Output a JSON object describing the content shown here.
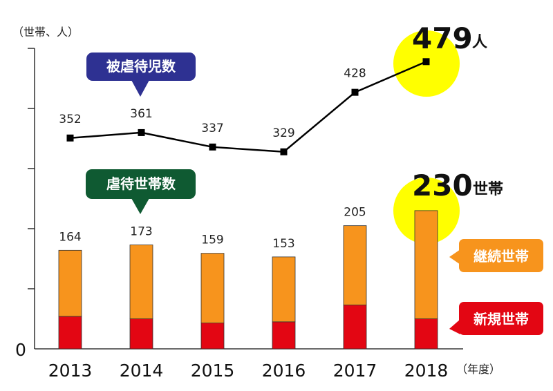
{
  "chart_data": {
    "type": "bar+line",
    "categories": [
      "2013",
      "2014",
      "2015",
      "2016",
      "2017",
      "2018"
    ],
    "line_series": {
      "name": "被虐待児数",
      "values": [
        352,
        361,
        337,
        329,
        428,
        479
      ],
      "color": "#000000"
    },
    "bar_series": [
      {
        "name": "新規世帯",
        "values": [
          54,
          50,
          43,
          45,
          73,
          50
        ],
        "color": "#e30613"
      },
      {
        "name": "継続世帯",
        "values": [
          110,
          123,
          116,
          108,
          132,
          180
        ],
        "color": "#f7941d"
      }
    ],
    "bar_totals": [
      164,
      173,
      159,
      153,
      205,
      230
    ],
    "bar_callout": "虐待世帯数",
    "y_unit": "（世帯、人）",
    "x_unit": "（年度）",
    "y_zero": "0",
    "grid": false,
    "highlight_color": "#ffff00",
    "callout_colors": {
      "line": "#2e3192",
      "bars": "#0f5a32"
    },
    "highlights": [
      {
        "number": "479",
        "unit": "人"
      },
      {
        "number": "230",
        "unit": "世帯"
      }
    ]
  }
}
